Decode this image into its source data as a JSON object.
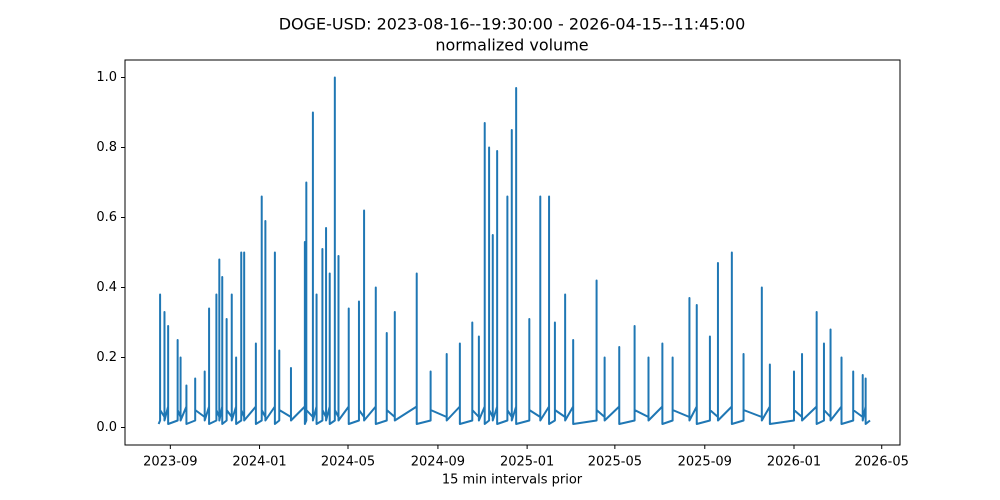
{
  "chart_data": {
    "type": "line",
    "title": "DOGE-USD: 2023-08-16--19:30:00 - 2026-04-15--11:45:00",
    "subtitle": "normalized volume",
    "x_label": "15 min intervals prior",
    "color": "#1f77b4",
    "xlim": [
      "2023-07-01",
      "2026-05-26"
    ],
    "xticks": [
      "2023-09",
      "2024-01",
      "2024-05",
      "2024-09",
      "2025-01",
      "2025-05",
      "2025-09",
      "2026-01",
      "2026-05"
    ],
    "ylim": [
      -0.05,
      1.05
    ],
    "yticks": [
      {
        "value": 0,
        "label": "0.0"
      },
      0.2,
      0.4,
      0.6,
      0.8,
      {
        "value": 1,
        "label": "1.0"
      }
    ],
    "grid": false,
    "x": [
      "2023-08-16",
      "2023-08-18",
      "2023-08-18",
      "2023-08-18",
      "2023-08-24",
      "2023-08-24",
      "2023-08-24",
      "2023-08-29",
      "2023-08-29",
      "2023-08-29",
      "2023-09-11",
      "2023-09-11",
      "2023-09-11",
      "2023-09-15",
      "2023-09-15",
      "2023-09-15",
      "2023-09-23",
      "2023-09-23",
      "2023-09-23",
      "2023-10-05",
      "2023-10-05",
      "2023-10-05",
      "2023-10-18",
      "2023-10-18",
      "2023-10-18",
      "2023-10-24",
      "2023-10-24",
      "2023-10-24",
      "2023-11-03",
      "2023-11-03",
      "2023-11-03",
      "2023-11-07",
      "2023-11-07",
      "2023-11-07",
      "2023-11-11",
      "2023-11-11",
      "2023-11-11",
      "2023-11-17",
      "2023-11-17",
      "2023-11-17",
      "2023-11-24",
      "2023-11-24",
      "2023-11-24",
      "2023-11-30",
      "2023-11-30",
      "2023-11-30",
      "2023-12-07",
      "2023-12-07",
      "2023-12-07",
      "2023-12-11",
      "2023-12-11",
      "2023-12-11",
      "2023-12-27",
      "2023-12-27",
      "2023-12-27",
      "2024-01-04",
      "2024-01-04",
      "2024-01-04",
      "2024-01-09",
      "2024-01-09",
      "2024-01-09",
      "2024-01-22",
      "2024-01-22",
      "2024-01-22",
      "2024-01-28",
      "2024-01-28",
      "2024-01-28",
      "2024-02-13",
      "2024-02-13",
      "2024-02-13",
      "2024-03-03",
      "2024-03-03",
      "2024-03-03",
      "2024-03-05",
      "2024-03-05",
      "2024-03-05",
      "2024-03-14",
      "2024-03-14",
      "2024-03-14",
      "2024-03-19",
      "2024-03-19",
      "2024-03-19",
      "2024-03-27",
      "2024-03-27",
      "2024-03-27",
      "2024-04-01",
      "2024-04-01",
      "2024-04-01",
      "2024-04-06",
      "2024-04-06",
      "2024-04-06",
      "2024-04-13",
      "2024-04-13",
      "2024-04-13",
      "2024-04-18",
      "2024-04-18",
      "2024-04-18",
      "2024-05-02",
      "2024-05-02",
      "2024-05-02",
      "2024-05-16",
      "2024-05-16",
      "2024-05-16",
      "2024-05-23",
      "2024-05-23",
      "2024-05-23",
      "2024-06-08",
      "2024-06-08",
      "2024-06-08",
      "2024-06-23",
      "2024-06-23",
      "2024-06-23",
      "2024-07-04",
      "2024-07-04",
      "2024-07-04",
      "2024-08-03",
      "2024-08-03",
      "2024-08-03",
      "2024-08-22",
      "2024-08-22",
      "2024-08-22",
      "2024-09-13",
      "2024-09-13",
      "2024-09-13",
      "2024-10-01",
      "2024-10-01",
      "2024-10-01",
      "2024-10-18",
      "2024-10-18",
      "2024-10-18",
      "2024-10-27",
      "2024-10-27",
      "2024-10-27",
      "2024-11-04",
      "2024-11-04",
      "2024-11-04",
      "2024-11-10",
      "2024-11-10",
      "2024-11-10",
      "2024-11-15",
      "2024-11-15",
      "2024-11-15",
      "2024-11-21",
      "2024-11-21",
      "2024-11-21",
      "2024-12-05",
      "2024-12-05",
      "2024-12-05",
      "2024-12-11",
      "2024-12-11",
      "2024-12-11",
      "2024-12-17",
      "2024-12-17",
      "2024-12-17",
      "2025-01-04",
      "2025-01-04",
      "2025-01-04",
      "2025-01-19",
      "2025-01-19",
      "2025-01-19",
      "2025-01-31",
      "2025-01-31",
      "2025-01-31",
      "2025-02-08",
      "2025-02-08",
      "2025-02-08",
      "2025-02-22",
      "2025-02-22",
      "2025-02-22",
      "2025-03-05",
      "2025-03-05",
      "2025-03-05",
      "2025-04-06",
      "2025-04-06",
      "2025-04-06",
      "2025-04-17",
      "2025-04-17",
      "2025-04-17",
      "2025-05-07",
      "2025-05-07",
      "2025-05-07",
      "2025-05-28",
      "2025-05-28",
      "2025-05-28",
      "2025-06-16",
      "2025-06-16",
      "2025-06-16",
      "2025-07-05",
      "2025-07-05",
      "2025-07-05",
      "2025-07-19",
      "2025-07-19",
      "2025-07-19",
      "2025-08-11",
      "2025-08-11",
      "2025-08-11",
      "2025-08-21",
      "2025-08-21",
      "2025-08-21",
      "2025-09-08",
      "2025-09-08",
      "2025-09-08",
      "2025-09-19",
      "2025-09-19",
      "2025-09-19",
      "2025-10-08",
      "2025-10-08",
      "2025-10-08",
      "2025-10-24",
      "2025-10-24",
      "2025-10-24",
      "2025-11-18",
      "2025-11-18",
      "2025-11-18",
      "2025-11-29",
      "2025-11-29",
      "2025-11-29",
      "2026-01-01",
      "2026-01-01",
      "2026-01-01",
      "2026-01-12",
      "2026-01-12",
      "2026-01-12",
      "2026-02-01",
      "2026-02-01",
      "2026-02-01",
      "2026-02-11",
      "2026-02-11",
      "2026-02-11",
      "2026-02-20",
      "2026-02-20",
      "2026-02-20",
      "2026-03-07",
      "2026-03-07",
      "2026-03-07",
      "2026-03-23",
      "2026-03-23",
      "2026-03-23",
      "2026-04-05",
      "2026-04-05",
      "2026-04-05",
      "2026-04-09",
      "2026-04-09",
      "2026-04-09",
      "2026-04-15"
    ],
    "values": [
      0.01,
      0.02,
      0.38,
      0.05,
      0.03,
      0.33,
      0.02,
      0.06,
      0.29,
      0.01,
      0.02,
      0.25,
      0.05,
      0.03,
      0.2,
      0.02,
      0.06,
      0.12,
      0.01,
      0.02,
      0.14,
      0.05,
      0.03,
      0.16,
      0.02,
      0.06,
      0.34,
      0.01,
      0.02,
      0.38,
      0.05,
      0.03,
      0.48,
      0.02,
      0.06,
      0.43,
      0.01,
      0.02,
      0.31,
      0.05,
      0.03,
      0.38,
      0.02,
      0.06,
      0.2,
      0.01,
      0.02,
      0.5,
      0.05,
      0.03,
      0.5,
      0.02,
      0.06,
      0.24,
      0.01,
      0.02,
      0.66,
      0.05,
      0.03,
      0.59,
      0.02,
      0.06,
      0.5,
      0.01,
      0.02,
      0.22,
      0.05,
      0.03,
      0.17,
      0.02,
      0.06,
      0.53,
      0.01,
      0.02,
      0.7,
      0.05,
      0.03,
      0.9,
      0.02,
      0.06,
      0.38,
      0.01,
      0.02,
      0.51,
      0.05,
      0.03,
      0.57,
      0.02,
      0.06,
      0.44,
      0.01,
      0.02,
      1.0,
      0.05,
      0.03,
      0.49,
      0.02,
      0.06,
      0.34,
      0.01,
      0.02,
      0.36,
      0.05,
      0.03,
      0.62,
      0.02,
      0.06,
      0.4,
      0.01,
      0.02,
      0.27,
      0.05,
      0.03,
      0.33,
      0.02,
      0.06,
      0.44,
      0.01,
      0.02,
      0.16,
      0.05,
      0.03,
      0.21,
      0.02,
      0.06,
      0.24,
      0.01,
      0.02,
      0.3,
      0.05,
      0.03,
      0.26,
      0.02,
      0.06,
      0.87,
      0.01,
      0.02,
      0.8,
      0.05,
      0.03,
      0.55,
      0.02,
      0.06,
      0.79,
      0.01,
      0.02,
      0.66,
      0.05,
      0.03,
      0.85,
      0.02,
      0.06,
      0.97,
      0.01,
      0.02,
      0.31,
      0.05,
      0.03,
      0.66,
      0.02,
      0.06,
      0.66,
      0.01,
      0.02,
      0.3,
      0.05,
      0.03,
      0.38,
      0.02,
      0.06,
      0.25,
      0.01,
      0.02,
      0.42,
      0.05,
      0.03,
      0.2,
      0.02,
      0.06,
      0.23,
      0.01,
      0.02,
      0.29,
      0.05,
      0.03,
      0.2,
      0.02,
      0.06,
      0.24,
      0.01,
      0.02,
      0.2,
      0.05,
      0.03,
      0.37,
      0.02,
      0.06,
      0.35,
      0.01,
      0.02,
      0.26,
      0.05,
      0.03,
      0.47,
      0.02,
      0.06,
      0.5,
      0.01,
      0.02,
      0.21,
      0.05,
      0.03,
      0.4,
      0.02,
      0.06,
      0.18,
      0.01,
      0.02,
      0.16,
      0.05,
      0.03,
      0.21,
      0.02,
      0.06,
      0.33,
      0.01,
      0.02,
      0.24,
      0.05,
      0.03,
      0.28,
      0.02,
      0.06,
      0.2,
      0.01,
      0.02,
      0.16,
      0.05,
      0.03,
      0.15,
      0.02,
      0.06,
      0.14,
      0.01,
      0.02
    ]
  }
}
